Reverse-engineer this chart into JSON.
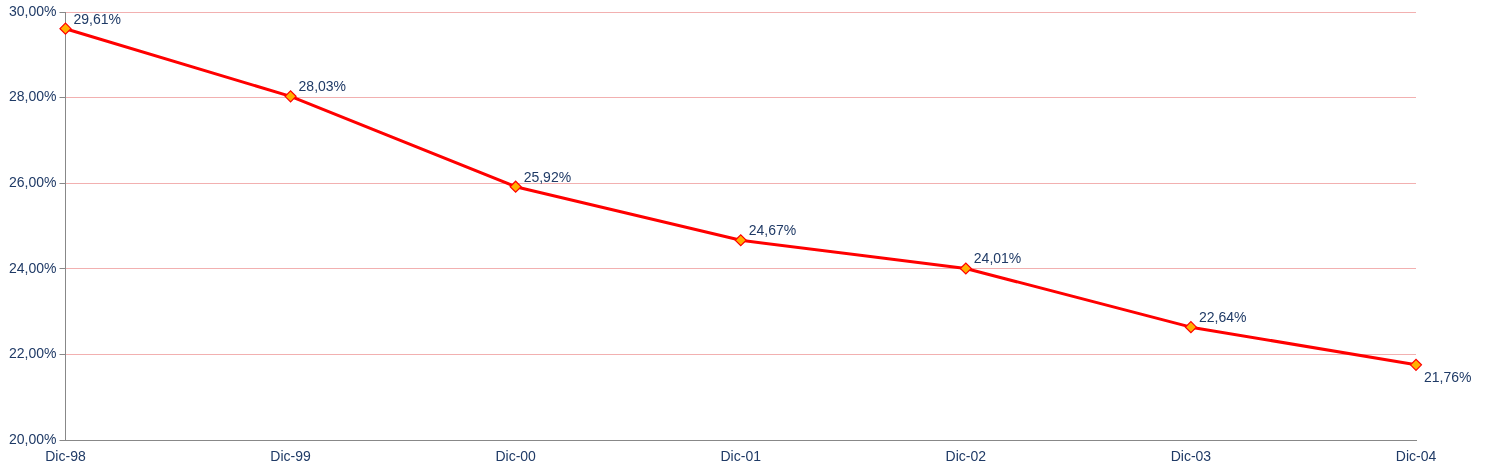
{
  "chart_data": {
    "type": "line",
    "categories": [
      "Dic-98",
      "Dic-99",
      "Dic-00",
      "Dic-01",
      "Dic-02",
      "Dic-03",
      "Dic-04"
    ],
    "series": [
      {
        "color": "#ff0000",
        "values": [
          29.61,
          28.03,
          25.92,
          24.67,
          24.01,
          22.64,
          21.76
        ],
        "value_labels": [
          "29,61%",
          "28,03%",
          "25,92%",
          "24,67%",
          "24,01%",
          "22,64%",
          "21,76%"
        ]
      }
    ],
    "ylim": [
      20,
      30
    ],
    "yticks": [
      {
        "value": 20,
        "label": "20,00%"
      },
      {
        "value": 22,
        "label": "22,00%"
      },
      {
        "value": 24,
        "label": "24,00%"
      },
      {
        "value": 26,
        "label": "26,00%"
      },
      {
        "value": 28,
        "label": "28,00%"
      },
      {
        "value": 30,
        "label": "30,00%"
      }
    ],
    "grid": "y",
    "legend": false,
    "marker": "diamond",
    "line_style": "solid"
  }
}
